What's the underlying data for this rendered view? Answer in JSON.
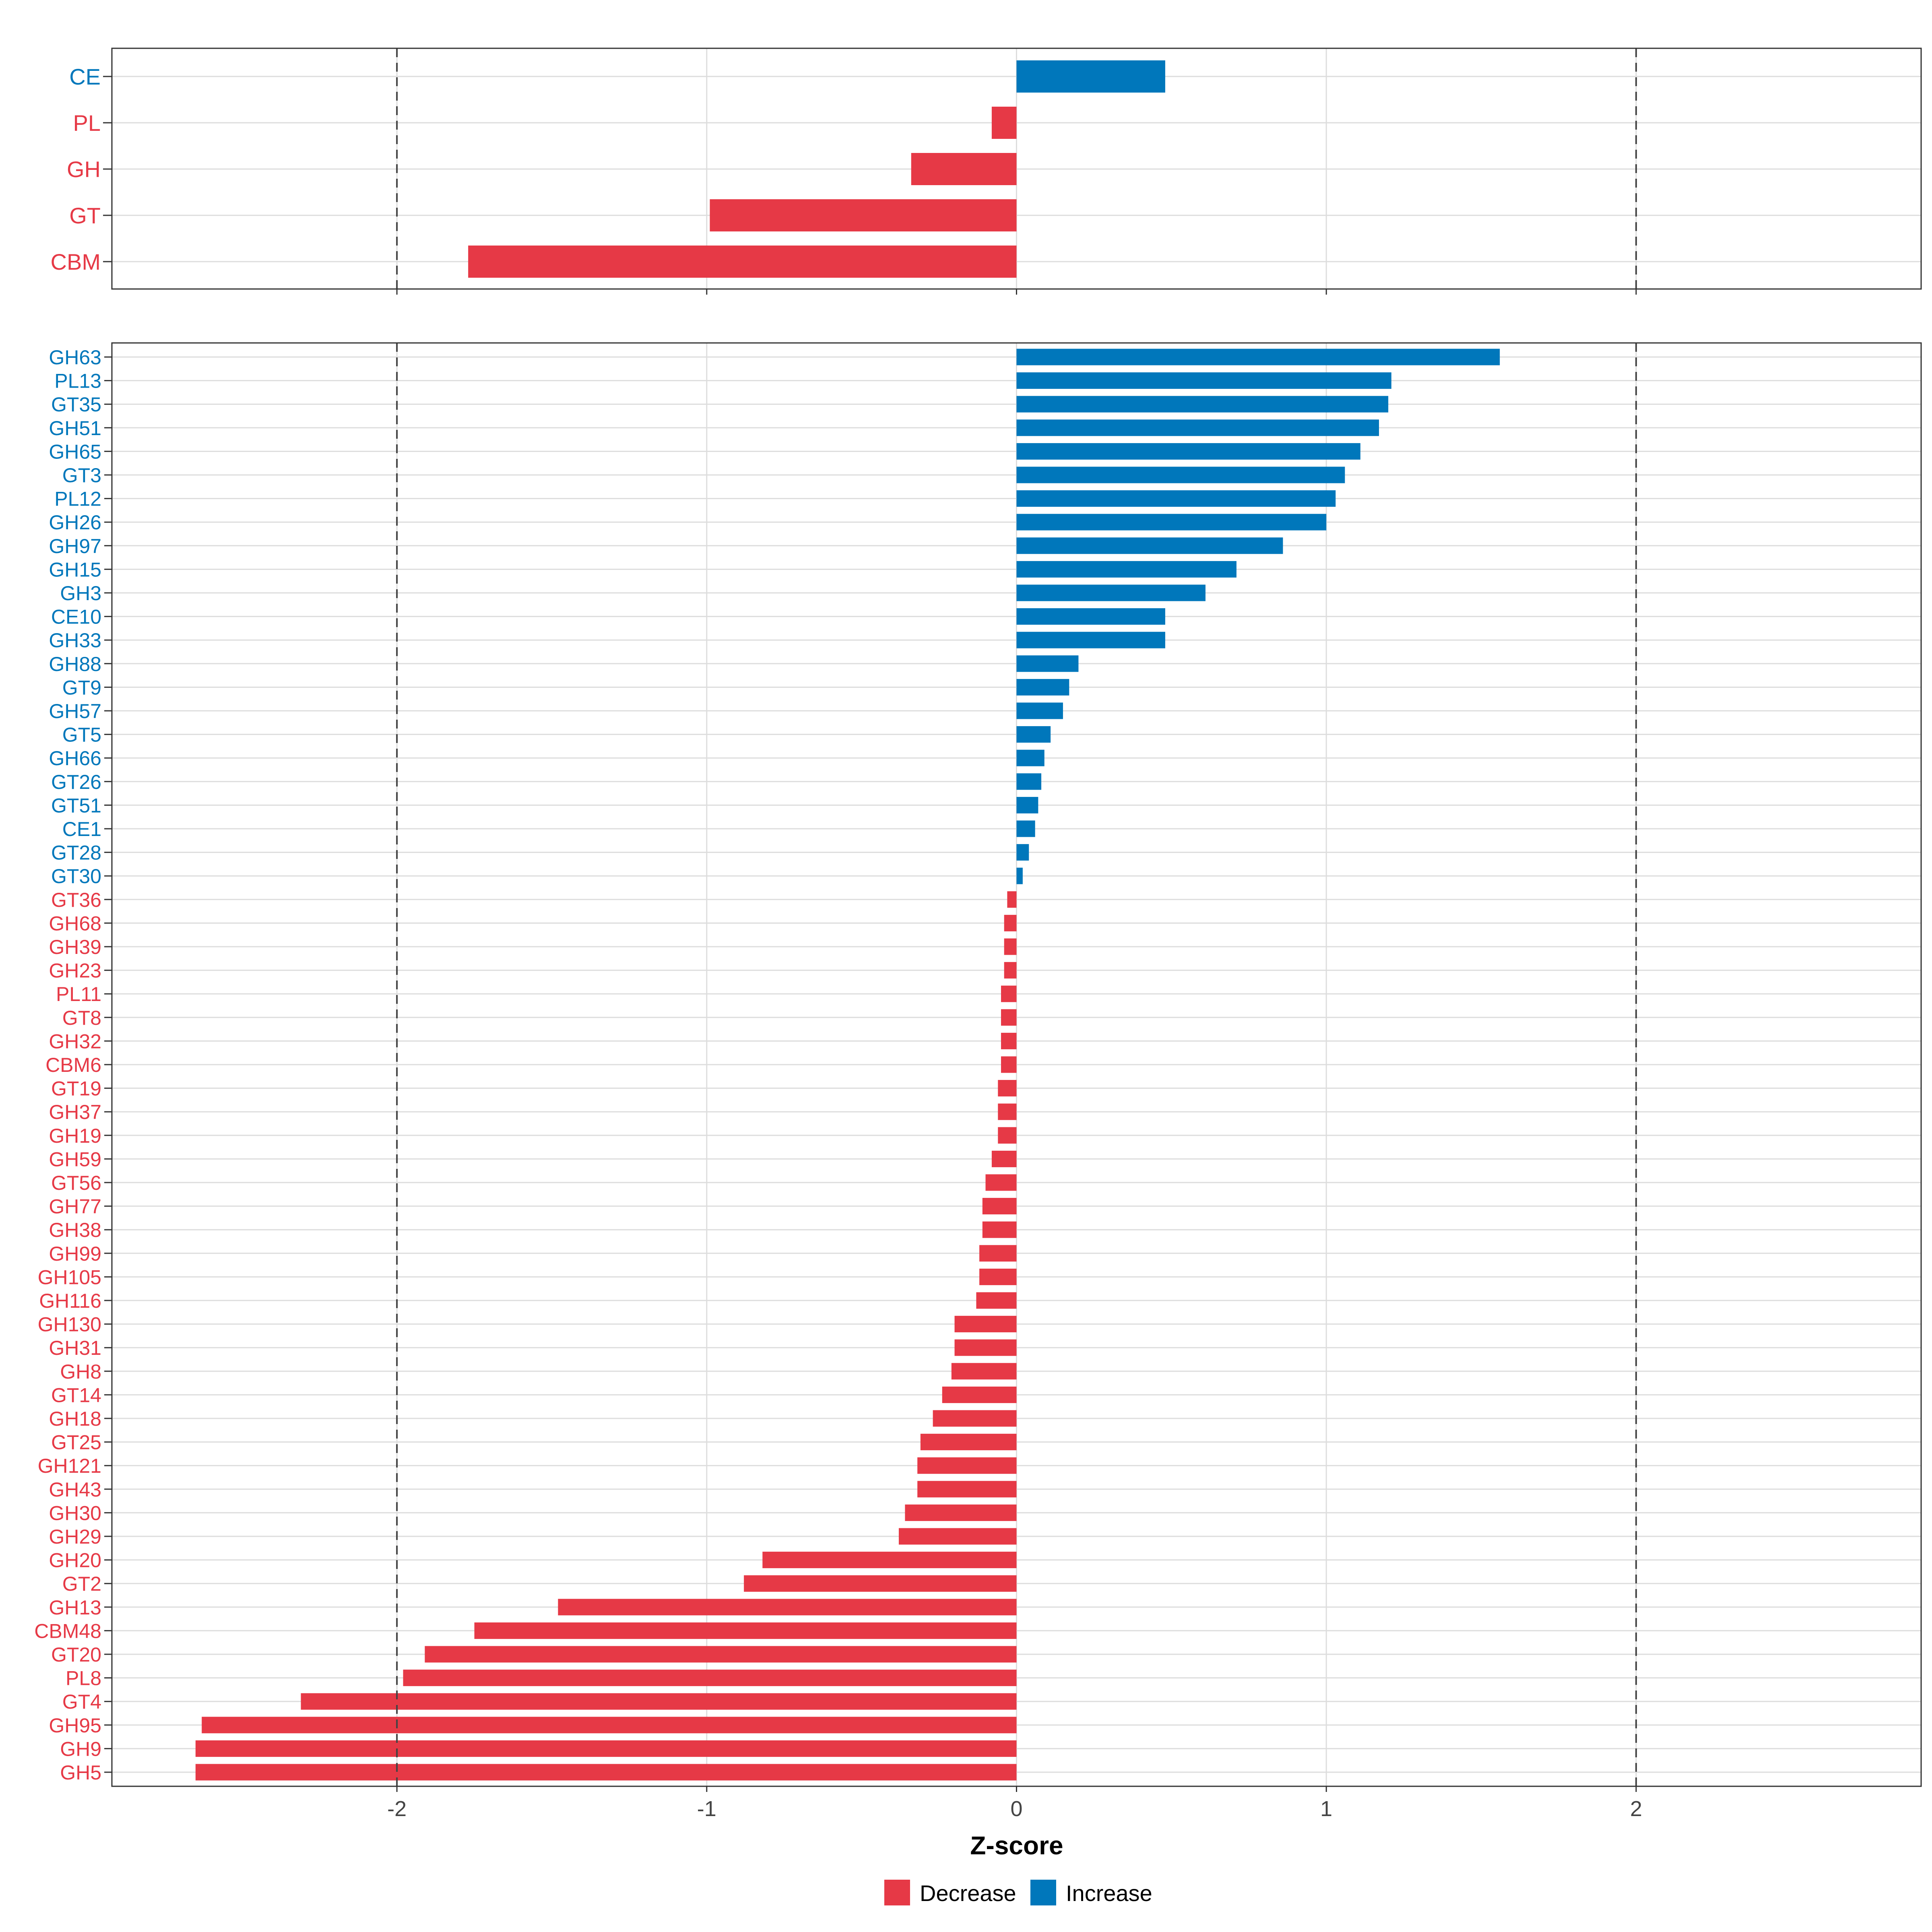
{
  "chart_data": [
    {
      "type": "bar",
      "orientation": "horizontal",
      "panel": "top",
      "categories": [
        "CE",
        "PL",
        "GH",
        "GT",
        "CBM"
      ],
      "values": [
        0.48,
        -0.08,
        -0.34,
        -0.99,
        -1.77
      ],
      "xlim": [
        -2.92,
        2.92
      ],
      "reference_lines": [
        -2,
        2
      ],
      "grid": true
    },
    {
      "type": "bar",
      "orientation": "horizontal",
      "panel": "bottom",
      "categories": [
        "GH63",
        "PL13",
        "GT35",
        "GH51",
        "GH65",
        "GT3",
        "PL12",
        "GH26",
        "GH97",
        "GH15",
        "GH3",
        "CE10",
        "GH33",
        "GH88",
        "GT9",
        "GH57",
        "GT5",
        "GH66",
        "GT26",
        "GT51",
        "CE1",
        "GT28",
        "GT30",
        "GT36",
        "GH68",
        "GH39",
        "GH23",
        "PL11",
        "GT8",
        "GH32",
        "CBM6",
        "GT19",
        "GH37",
        "GH19",
        "GH59",
        "GT56",
        "GH77",
        "GH38",
        "GH99",
        "GH105",
        "GH116",
        "GH130",
        "GH31",
        "GH8",
        "GT14",
        "GH18",
        "GT25",
        "GH121",
        "GH43",
        "GH30",
        "GH29",
        "GH20",
        "GT2",
        "GH13",
        "CBM48",
        "GT20",
        "PL8",
        "GT4",
        "GH95",
        "GH9",
        "GH5"
      ],
      "values": [
        1.56,
        1.21,
        1.2,
        1.17,
        1.11,
        1.06,
        1.03,
        1.0,
        0.86,
        0.71,
        0.61,
        0.48,
        0.48,
        0.2,
        0.17,
        0.15,
        0.11,
        0.09,
        0.08,
        0.07,
        0.06,
        0.04,
        0.02,
        -0.03,
        -0.04,
        -0.04,
        -0.04,
        -0.05,
        -0.05,
        -0.05,
        -0.05,
        -0.06,
        -0.06,
        -0.06,
        -0.08,
        -0.1,
        -0.11,
        -0.11,
        -0.12,
        -0.12,
        -0.13,
        -0.2,
        -0.2,
        -0.21,
        -0.24,
        -0.27,
        -0.31,
        -0.32,
        -0.32,
        -0.36,
        -0.38,
        -0.82,
        -0.88,
        -1.48,
        -1.75,
        -1.91,
        -1.98,
        -2.31,
        -2.63,
        -2.65,
        -2.65
      ],
      "xlim": [
        -2.92,
        2.92
      ],
      "xticks": [
        "-2",
        "-1",
        "0",
        "1",
        "2"
      ],
      "xtick_values": [
        -2,
        -1,
        0,
        1,
        2
      ],
      "reference_lines": [
        -2,
        2
      ],
      "xlabel": "Z-score",
      "grid": true
    }
  ],
  "legend": {
    "placement": "bottom",
    "items": [
      {
        "label": "Decrease",
        "color": "#E63946"
      },
      {
        "label": "Increase",
        "color": "#0077BB"
      }
    ]
  },
  "colors": {
    "decrease": "#E63946",
    "increase": "#0077BB",
    "grid": "#DDDDDD",
    "border": "#333333",
    "reference_line": "#444444"
  }
}
